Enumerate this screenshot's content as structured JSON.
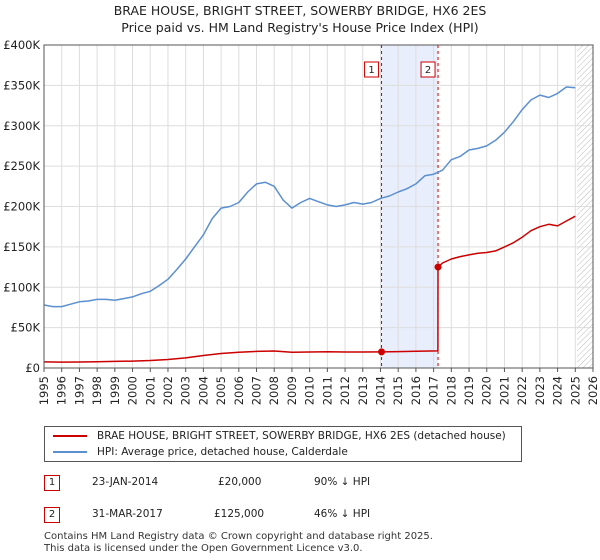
{
  "title": "BRAE HOUSE, BRIGHT STREET, SOWERBY BRIDGE, HX6 2ES",
  "subtitle": "Price paid vs. HM Land Registry's House Price Index (HPI)",
  "colors": {
    "property": "#cc0000",
    "hpi": "#5b8fd0",
    "shade": "#e8eefb",
    "grid": "#dddddd",
    "marker_border": "#cc0000"
  },
  "legend": {
    "property_label": "BRAE HOUSE, BRIGHT STREET, SOWERBY BRIDGE, HX6 2ES (detached house)",
    "hpi_label": "HPI: Average price, detached house, Calderdale"
  },
  "transactions": [
    {
      "marker": "1",
      "date": "23-JAN-2014",
      "price": "£20,000",
      "hpi_diff": "90% ↓ HPI"
    },
    {
      "marker": "2",
      "date": "31-MAR-2017",
      "price": "£125,000",
      "hpi_diff": "46% ↓ HPI"
    }
  ],
  "footer": {
    "line1": "Contains HM Land Registry data © Crown copyright and database right 2025.",
    "line2": "This data is licensed under the Open Government Licence v3.0."
  },
  "chart_data": {
    "type": "line",
    "title": "BRAE HOUSE, BRIGHT STREET, SOWERBY BRIDGE, HX6 2ES",
    "xlim": [
      1995,
      2026
    ],
    "ylim": [
      0,
      400000
    ],
    "x_ticks": [
      "1995",
      "1996",
      "1997",
      "1998",
      "1999",
      "2000",
      "2001",
      "2002",
      "2003",
      "2004",
      "2005",
      "2006",
      "2007",
      "2008",
      "2009",
      "2010",
      "2011",
      "2012",
      "2013",
      "2014",
      "2015",
      "2016",
      "2017",
      "2018",
      "2019",
      "2020",
      "2021",
      "2022",
      "2023",
      "2024",
      "2025",
      "2026"
    ],
    "y_ticks": [
      {
        "value": 0,
        "label": "£0"
      },
      {
        "value": 50000,
        "label": "£50K"
      },
      {
        "value": 100000,
        "label": "£100K"
      },
      {
        "value": 150000,
        "label": "£150K"
      },
      {
        "value": 200000,
        "label": "£200K"
      },
      {
        "value": 250000,
        "label": "£250K"
      },
      {
        "value": 300000,
        "label": "£300K"
      },
      {
        "value": 350000,
        "label": "£350K"
      },
      {
        "value": 400000,
        "label": "£400K"
      }
    ],
    "shaded_period": [
      2014.06,
      2017.25
    ],
    "forecast_start": 2025.1,
    "series": [
      {
        "name": "HPI: Average price, detached house, Calderdale",
        "x": [
          1995,
          1995.5,
          1996,
          1996.5,
          1997,
          1997.5,
          1998,
          1998.5,
          1999,
          1999.5,
          2000,
          2000.5,
          2001,
          2001.5,
          2002,
          2002.5,
          2003,
          2003.5,
          2004,
          2004.5,
          2005,
          2005.5,
          2006,
          2006.5,
          2007,
          2007.5,
          2008,
          2008.5,
          2009,
          2009.5,
          2010,
          2010.5,
          2011,
          2011.5,
          2012,
          2012.5,
          2013,
          2013.5,
          2014,
          2014.5,
          2015,
          2015.5,
          2016,
          2016.5,
          2017,
          2017.5,
          2018,
          2018.5,
          2019,
          2019.5,
          2020,
          2020.5,
          2021,
          2021.5,
          2022,
          2022.5,
          2023,
          2023.5,
          2024,
          2024.5,
          2025
        ],
        "y": [
          78000,
          76000,
          76000,
          79000,
          82000,
          83000,
          85000,
          85000,
          84000,
          86000,
          88000,
          92000,
          95000,
          102000,
          110000,
          122000,
          135000,
          150000,
          165000,
          185000,
          198000,
          200000,
          205000,
          218000,
          228000,
          230000,
          225000,
          208000,
          198000,
          205000,
          210000,
          206000,
          202000,
          200000,
          202000,
          205000,
          203000,
          205000,
          210000,
          213000,
          218000,
          222000,
          228000,
          238000,
          240000,
          245000,
          258000,
          262000,
          270000,
          272000,
          275000,
          282000,
          292000,
          305000,
          320000,
          332000,
          338000,
          335000,
          340000,
          348000,
          347000
        ]
      },
      {
        "name": "BRAE HOUSE, BRIGHT STREET, SOWERBY BRIDGE, HX6 2ES (detached house)",
        "x": [
          1995,
          1996,
          1997,
          1998,
          1999,
          2000,
          2001,
          2002,
          2003,
          2004,
          2005,
          2006,
          2007,
          2008,
          2009,
          2010,
          2011,
          2012,
          2013,
          2014.06,
          2015,
          2016,
          2017.24,
          2017.25,
          2017.5,
          2018,
          2018.5,
          2019,
          2019.5,
          2020,
          2020.5,
          2021,
          2021.5,
          2022,
          2022.5,
          2023,
          2023.5,
          2024,
          2024.5,
          2025
        ],
        "y": [
          7500,
          7300,
          7400,
          7800,
          8200,
          8600,
          9300,
          10500,
          12500,
          15500,
          18000,
          19500,
          20500,
          21000,
          19500,
          19800,
          20200,
          19800,
          19800,
          20000,
          20300,
          20700,
          21200,
          125000,
          130000,
          135000,
          138000,
          140000,
          142000,
          143000,
          145000,
          150000,
          155000,
          162000,
          170000,
          175000,
          178000,
          176000,
          182000,
          188000
        ]
      }
    ],
    "markers": [
      {
        "label": "1",
        "x": 2014.06,
        "y": 20000
      },
      {
        "label": "2",
        "x": 2017.25,
        "y": 125000
      }
    ]
  }
}
